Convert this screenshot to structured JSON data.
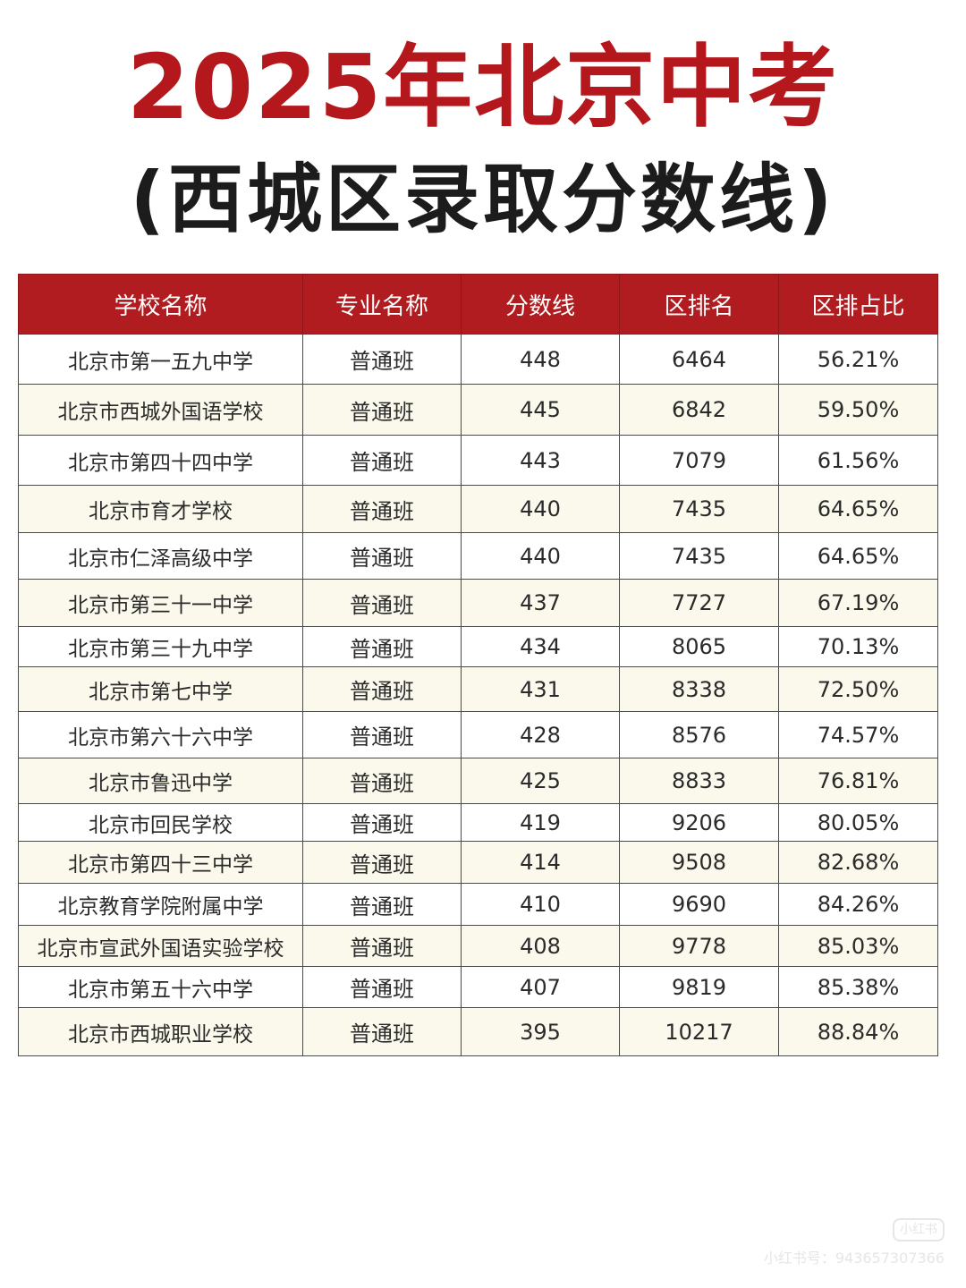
{
  "title": {
    "main": "2025年北京中考",
    "sub": "(西城区录取分数线)"
  },
  "table": {
    "headers": [
      "学校名称",
      "专业名称",
      "分数线",
      "区排名",
      "区排占比"
    ],
    "rows": [
      [
        "北京市第一五九中学",
        "普通班",
        "448",
        "6464",
        "56.21%"
      ],
      [
        "北京市西城外国语学校",
        "普通班",
        "445",
        "6842",
        "59.50%"
      ],
      [
        "北京市第四十四中学",
        "普通班",
        "443",
        "7079",
        "61.56%"
      ],
      [
        "北京市育才学校",
        "普通班",
        "440",
        "7435",
        "64.65%"
      ],
      [
        "北京市仁泽高级中学",
        "普通班",
        "440",
        "7435",
        "64.65%"
      ],
      [
        "北京市第三十一中学",
        "普通班",
        "437",
        "7727",
        "67.19%"
      ],
      [
        "北京市第三十九中学",
        "普通班",
        "434",
        "8065",
        "70.13%"
      ],
      [
        "北京市第七中学",
        "普通班",
        "431",
        "8338",
        "72.50%"
      ],
      [
        "北京市第六十六中学",
        "普通班",
        "428",
        "8576",
        "74.57%"
      ],
      [
        "北京市鲁迅中学",
        "普通班",
        "425",
        "8833",
        "76.81%"
      ],
      [
        "北京市回民学校",
        "普通班",
        "419",
        "9206",
        "80.05%"
      ],
      [
        "北京市第四十三中学",
        "普通班",
        "414",
        "9508",
        "82.68%"
      ],
      [
        "北京教育学院附属中学",
        "普通班",
        "410",
        "9690",
        "84.26%"
      ],
      [
        "北京市宣武外国语实验学校",
        "普通班",
        "408",
        "9778",
        "85.03%"
      ],
      [
        "北京市第五十六中学",
        "普通班",
        "407",
        "9819",
        "85.38%"
      ],
      [
        "北京市西城职业学校",
        "普通班",
        "395",
        "10217",
        "88.84%"
      ]
    ]
  },
  "watermark": {
    "logo": "小红书",
    "text": "小红书号：943657307366"
  },
  "colors": {
    "title_red": "#b4181c",
    "header_bg": "#b01c20",
    "stripe_bg": "#fbf8ec"
  }
}
